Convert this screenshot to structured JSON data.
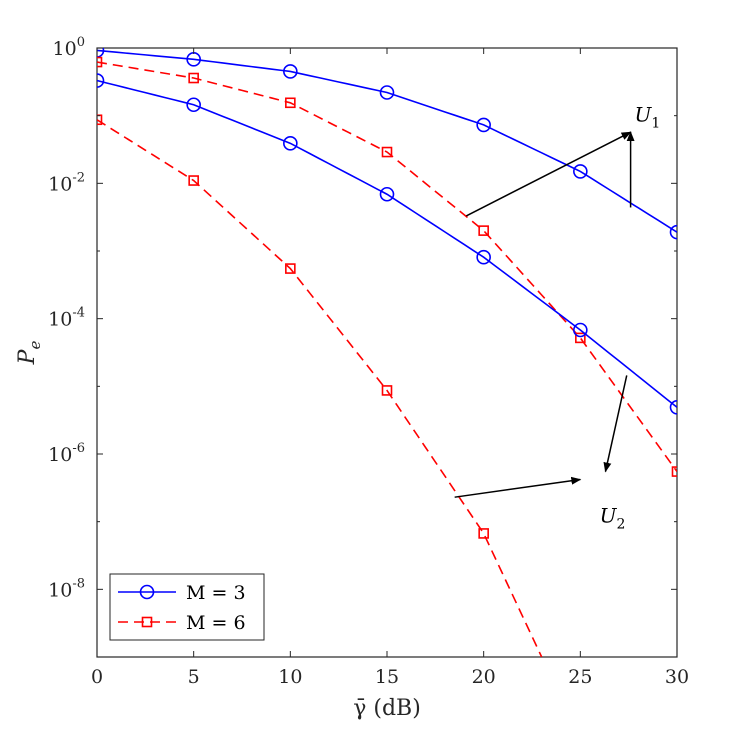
{
  "chart_data": {
    "type": "line",
    "xlabel": "γ̄ (dB)",
    "ylabel": "P",
    "ylabel_sub": "e",
    "xlim": [
      0,
      30
    ],
    "ylim_exp": [
      -9,
      0
    ],
    "y_scale": "log",
    "x_ticks": [
      0,
      5,
      10,
      15,
      20,
      25,
      30
    ],
    "y_ticks": [
      {
        "base": "10",
        "exp": "0",
        "value_exp": 0
      },
      {
        "base": "10",
        "exp": "-2",
        "value_exp": -2
      },
      {
        "base": "10",
        "exp": "-4",
        "value_exp": -4
      },
      {
        "base": "10",
        "exp": "-6",
        "value_exp": -6
      },
      {
        "base": "10",
        "exp": "-8",
        "value_exp": -8
      }
    ],
    "grid": false,
    "legend": "bottom-left",
    "series": [
      {
        "name": "M = 3",
        "group": "U1",
        "color": "#0000ff",
        "dash": "solid",
        "marker": "circle",
        "x": [
          0,
          5,
          10,
          15,
          20,
          25,
          30
        ],
        "y": [
          0.92,
          0.68,
          0.45,
          0.22,
          0.073,
          0.015,
          0.0019
        ]
      },
      {
        "name": "M = 6",
        "group": "U1",
        "color": "#ff0000",
        "dash": "dashed",
        "marker": "square",
        "x": [
          0,
          5,
          10,
          15,
          20,
          25,
          30
        ],
        "y": [
          0.62,
          0.36,
          0.155,
          0.029,
          0.002,
          5.2e-05,
          5.5e-07
        ]
      },
      {
        "name": "M = 3",
        "group": "U2",
        "color": "#0000ff",
        "dash": "solid",
        "marker": "circle",
        "x": [
          0,
          5,
          10,
          15,
          20,
          25,
          30
        ],
        "y": [
          0.33,
          0.145,
          0.039,
          0.0069,
          0.00081,
          6.8e-05,
          4.9e-06
        ]
      },
      {
        "name": "M = 6",
        "group": "U2",
        "color": "#ff0000",
        "dash": "dashed",
        "marker": "square",
        "x": [
          0,
          5,
          10,
          15,
          20,
          23
        ],
        "y": [
          0.087,
          0.011,
          0.00055,
          8.7e-06,
          6.7e-08,
          1e-09
        ],
        "marker_count": 5
      }
    ],
    "annotations": [
      {
        "label": "U",
        "sub": "1"
      },
      {
        "label": "U",
        "sub": "2"
      }
    ]
  }
}
